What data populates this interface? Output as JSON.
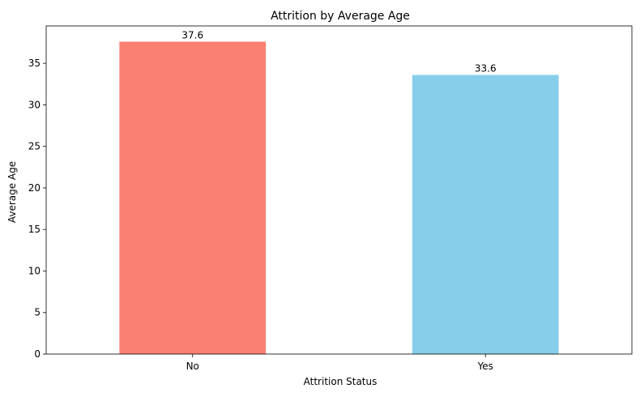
{
  "chart_data": {
    "type": "bar",
    "title": "Attrition by Average Age",
    "xlabel": "Attrition Status",
    "ylabel": "Average Age",
    "categories": [
      "No",
      "Yes"
    ],
    "values": [
      37.6,
      33.6
    ],
    "value_labels": [
      "37.6",
      "33.6"
    ],
    "colors": [
      "#fa8072",
      "#87ceeb"
    ],
    "ylim": [
      0,
      39.5
    ],
    "yticks": [
      0,
      5,
      10,
      15,
      20,
      25,
      30,
      35
    ],
    "ytick_labels": [
      "0",
      "5",
      "10",
      "15",
      "20",
      "25",
      "30",
      "35"
    ],
    "grid": false,
    "legend": "none"
  }
}
